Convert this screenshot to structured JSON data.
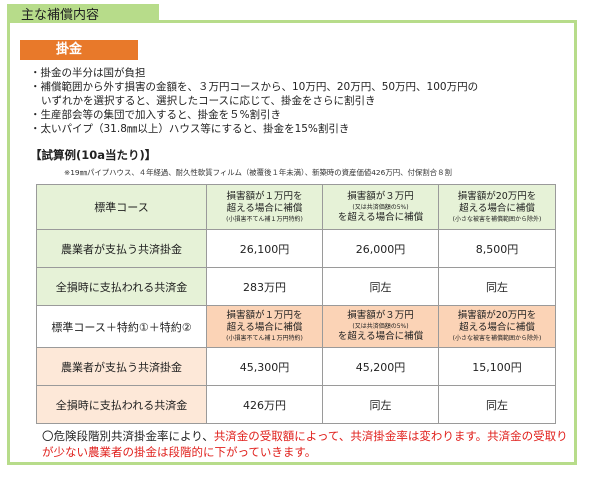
{
  "section_tab": "主な補償内容",
  "badge": "掛金",
  "bullets": [
    "・掛金の半分は国が負担",
    "・補償範囲から外す損害の金額を、３万円コースから、10万円、20万円、50万円、100万円の",
    "いずれかを選択すると、選択したコースに応じて、掛金をさらに割引き",
    "・生産部会等の集団で加入すると、掛金を５%割引き",
    "・太いパイプ（31.8㎜以上）ハウス等にすると、掛金を15%割引き"
  ],
  "example_title": "【試算例(10a当たり)】",
  "example_note": "※19㎜パイプハウス、４年経過、耐久性軟質フィルム（被覆後１年未満）、新築時の資産価値426万円、付保割合８割",
  "table1": {
    "header_label": "標準コース",
    "headers": [
      {
        "l1": "損害額が１万円を",
        "l2a": "超える場合に補償",
        "sub": "(小損害不てん補１万円特約)"
      },
      {
        "l1": "損害額が３万円",
        "sub": "(又は共済価額の5%)",
        "l2b": "を超える場合に補償"
      },
      {
        "l1": "損害額が20万円を",
        "l2a": "超える場合に補償",
        "sub": "(小さな被害を補償範囲から除外)"
      }
    ],
    "rows": [
      {
        "label": "農業者が支払う共済掛金",
        "values": [
          "26,100円",
          "26,000円",
          "8,500円"
        ]
      },
      {
        "label": "全損時に支払われる共済金",
        "values": [
          "283万円",
          "同左",
          "同左"
        ]
      }
    ]
  },
  "table2": {
    "header_label": "標準コース＋特約①＋特約②",
    "headers": [
      {
        "l1": "損害額が１万円を",
        "l2a": "超える場合に補償",
        "sub": "(小損害不てん補１万円特約)"
      },
      {
        "l1": "損害額が３万円",
        "sub": "(又は共済価額の5%)",
        "l2b": "を超える場合に補償"
      },
      {
        "l1": "損害額が20万円を",
        "l2a": "超える場合に補償",
        "sub": "(小さな被害を補償範囲から除外)"
      }
    ],
    "rows": [
      {
        "label": "農業者が支払う共済掛金",
        "values": [
          "45,300円",
          "45,200円",
          "15,100円"
        ]
      },
      {
        "label": "全損時に支払われる共済金",
        "values": [
          "426万円",
          "同左",
          "同左"
        ]
      }
    ]
  },
  "footer": {
    "part1": "〇危険段階別共済掛金率により、",
    "part2": "共済金の受取額によって、共済掛金率は変わります。共済金の受取りが少ない農業者の掛金は段階的に下がっていきます。"
  }
}
